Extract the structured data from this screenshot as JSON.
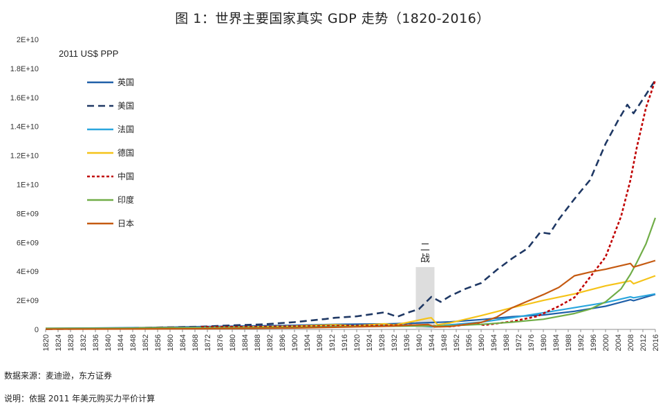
{
  "chart_data": {
    "type": "line",
    "title": "图 1：世界主要国家真实 GDP 走势（1820-2016）",
    "unit_label": "2011 US$ PPP",
    "xlabel": "",
    "ylabel": "",
    "xlim": [
      1820,
      2016
    ],
    "ylim": [
      0,
      20000000000
    ],
    "yticks": [
      0,
      2000000000,
      4000000000,
      6000000000,
      8000000000,
      10000000000,
      12000000000,
      14000000000,
      16000000000,
      18000000000,
      20000000000
    ],
    "ytick_labels": [
      "0",
      "2E+09",
      "4E+09",
      "6E+09",
      "8E+09",
      "1E+10",
      "1.2E+10",
      "1.4E+10",
      "1.6E+10",
      "1.8E+10",
      "2E+10"
    ],
    "xtick_start": 1820,
    "xtick_end": 2016,
    "xtick_step": 4,
    "legend_position": "top-left",
    "annotation": {
      "text": "二\n战",
      "x_from": 1939,
      "x_to": 1945,
      "y": 4300000000
    },
    "series": [
      {
        "name": "英国",
        "color": "#1f5fa8",
        "dash": "solid",
        "points": [
          [
            1820,
            0.07
          ],
          [
            1850,
            0.12
          ],
          [
            1870,
            0.19
          ],
          [
            1900,
            0.28
          ],
          [
            1913,
            0.35
          ],
          [
            1930,
            0.38
          ],
          [
            1938,
            0.43
          ],
          [
            1945,
            0.48
          ],
          [
            1950,
            0.52
          ],
          [
            1960,
            0.68
          ],
          [
            1970,
            0.88
          ],
          [
            1980,
            1.0
          ],
          [
            1990,
            1.25
          ],
          [
            2000,
            1.6
          ],
          [
            2008,
            2.05
          ],
          [
            2009,
            1.98
          ],
          [
            2016,
            2.42
          ]
        ]
      },
      {
        "name": "美国",
        "color": "#1f3864",
        "dash": "10,6",
        "points": [
          [
            1820,
            0.02
          ],
          [
            1840,
            0.06
          ],
          [
            1860,
            0.15
          ],
          [
            1870,
            0.19
          ],
          [
            1880,
            0.28
          ],
          [
            1890,
            0.35
          ],
          [
            1900,
            0.5
          ],
          [
            1910,
            0.72
          ],
          [
            1913,
            0.8
          ],
          [
            1920,
            0.9
          ],
          [
            1929,
            1.18
          ],
          [
            1933,
            0.87
          ],
          [
            1937,
            1.2
          ],
          [
            1940,
            1.4
          ],
          [
            1944,
            2.25
          ],
          [
            1947,
            1.9
          ],
          [
            1950,
            2.3
          ],
          [
            1955,
            2.8
          ],
          [
            1960,
            3.2
          ],
          [
            1965,
            4.1
          ],
          [
            1970,
            4.9
          ],
          [
            1975,
            5.6
          ],
          [
            1979,
            6.7
          ],
          [
            1982,
            6.6
          ],
          [
            1985,
            7.6
          ],
          [
            1990,
            9.0
          ],
          [
            1995,
            10.3
          ],
          [
            2000,
            12.8
          ],
          [
            2004,
            14.4
          ],
          [
            2007,
            15.5
          ],
          [
            2009,
            14.9
          ],
          [
            2013,
            16.2
          ],
          [
            2016,
            17.2
          ]
        ]
      },
      {
        "name": "法国",
        "color": "#2aa6de",
        "dash": "solid",
        "points": [
          [
            1820,
            0.06
          ],
          [
            1850,
            0.1
          ],
          [
            1870,
            0.14
          ],
          [
            1900,
            0.2
          ],
          [
            1913,
            0.25
          ],
          [
            1930,
            0.3
          ],
          [
            1938,
            0.3
          ],
          [
            1944,
            0.18
          ],
          [
            1950,
            0.32
          ],
          [
            1960,
            0.5
          ],
          [
            1970,
            0.8
          ],
          [
            1980,
            1.15
          ],
          [
            1990,
            1.5
          ],
          [
            2000,
            1.85
          ],
          [
            2008,
            2.25
          ],
          [
            2009,
            2.18
          ],
          [
            2016,
            2.45
          ]
        ]
      },
      {
        "name": "德国",
        "color": "#f5c318",
        "dash": "solid",
        "points": [
          [
            1850,
            0.1
          ],
          [
            1870,
            0.12
          ],
          [
            1900,
            0.22
          ],
          [
            1913,
            0.32
          ],
          [
            1919,
            0.25
          ],
          [
            1929,
            0.38
          ],
          [
            1932,
            0.3
          ],
          [
            1938,
            0.55
          ],
          [
            1943,
            0.78
          ],
          [
            1944,
            0.8
          ],
          [
            1946,
            0.32
          ],
          [
            1950,
            0.45
          ],
          [
            1960,
            0.95
          ],
          [
            1970,
            1.5
          ],
          [
            1980,
            2.0
          ],
          [
            1990,
            2.45
          ],
          [
            2000,
            3.0
          ],
          [
            2008,
            3.35
          ],
          [
            2009,
            3.15
          ],
          [
            2016,
            3.7
          ]
        ]
      },
      {
        "name": "中国",
        "color": "#c00000",
        "dash": "4,3",
        "points": [
          [
            1870,
            0.16
          ],
          [
            1900,
            0.2
          ],
          [
            1913,
            0.24
          ],
          [
            1930,
            0.27
          ],
          [
            1938,
            0.3
          ],
          [
            1945,
            0.25
          ],
          [
            1950,
            0.2
          ],
          [
            1958,
            0.4
          ],
          [
            1961,
            0.3
          ],
          [
            1970,
            0.55
          ],
          [
            1978,
            0.9
          ],
          [
            1985,
            1.6
          ],
          [
            1990,
            2.2
          ],
          [
            1995,
            3.6
          ],
          [
            2000,
            5.0
          ],
          [
            2005,
            7.8
          ],
          [
            2008,
            10.3
          ],
          [
            2010,
            12.5
          ],
          [
            2013,
            15.3
          ],
          [
            2016,
            17.2
          ]
        ]
      },
      {
        "name": "印度",
        "color": "#70ad47",
        "dash": "solid",
        "points": [
          [
            1820,
            0.07
          ],
          [
            1850,
            0.09
          ],
          [
            1870,
            0.1
          ],
          [
            1900,
            0.14
          ],
          [
            1913,
            0.18
          ],
          [
            1930,
            0.22
          ],
          [
            1940,
            0.24
          ],
          [
            1945,
            0.24
          ],
          [
            1950,
            0.25
          ],
          [
            1960,
            0.35
          ],
          [
            1970,
            0.5
          ],
          [
            1980,
            0.7
          ],
          [
            1990,
            1.1
          ],
          [
            1995,
            1.4
          ],
          [
            2000,
            1.9
          ],
          [
            2005,
            2.8
          ],
          [
            2008,
            3.8
          ],
          [
            2010,
            4.6
          ],
          [
            2013,
            5.9
          ],
          [
            2016,
            7.7
          ]
        ]
      },
      {
        "name": "日本",
        "color": "#c55a11",
        "dash": "solid",
        "points": [
          [
            1820,
            0.02
          ],
          [
            1850,
            0.03
          ],
          [
            1870,
            0.05
          ],
          [
            1900,
            0.1
          ],
          [
            1913,
            0.15
          ],
          [
            1930,
            0.22
          ],
          [
            1938,
            0.3
          ],
          [
            1943,
            0.34
          ],
          [
            1945,
            0.17
          ],
          [
            1950,
            0.2
          ],
          [
            1960,
            0.48
          ],
          [
            1965,
            0.85
          ],
          [
            1970,
            1.5
          ],
          [
            1975,
            1.95
          ],
          [
            1980,
            2.4
          ],
          [
            1985,
            2.9
          ],
          [
            1990,
            3.7
          ],
          [
            1995,
            3.95
          ],
          [
            2000,
            4.15
          ],
          [
            2005,
            4.4
          ],
          [
            2008,
            4.55
          ],
          [
            2009,
            4.3
          ],
          [
            2016,
            4.75
          ]
        ]
      }
    ]
  },
  "footer": {
    "source": "数据来源：麦迪逊，东方证券",
    "explanation": "说明：依据 2011 年美元购买力平价计算"
  }
}
